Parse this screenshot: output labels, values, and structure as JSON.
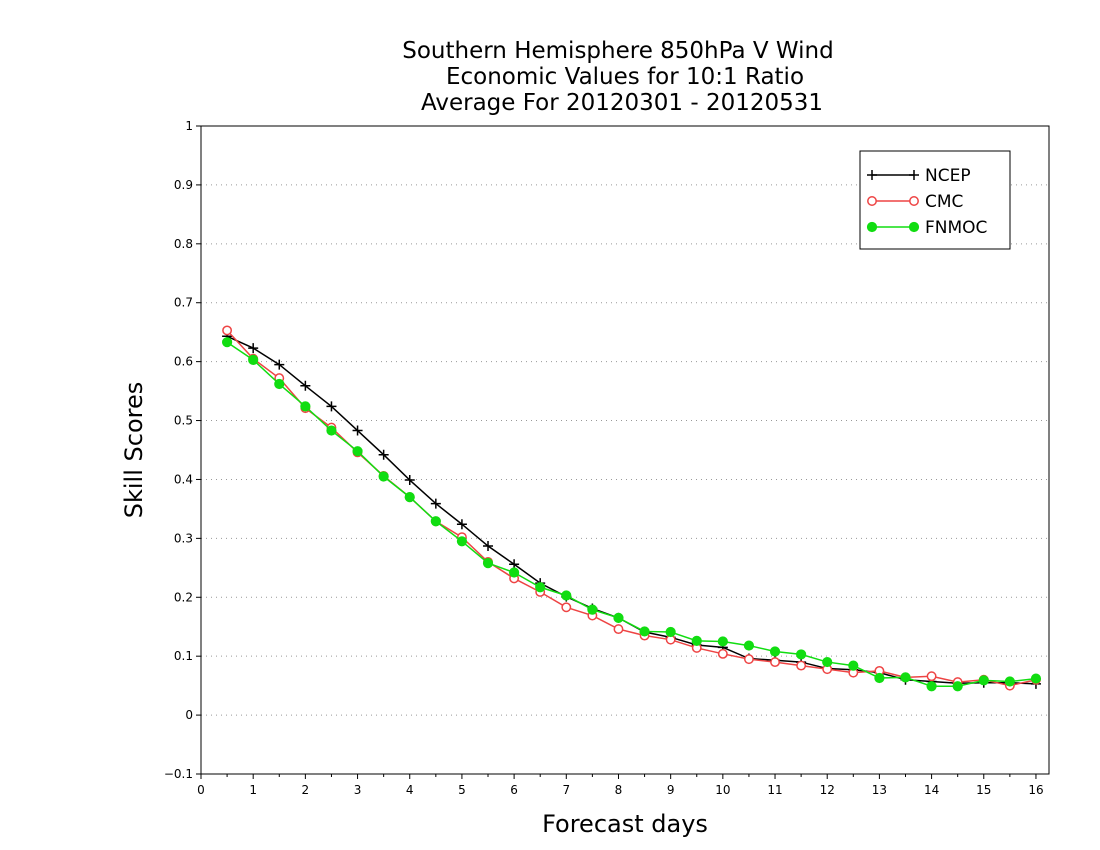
{
  "chart_data": {
    "type": "line",
    "title": [
      "Southern Hemisphere 850hPa V Wind",
      "Economic Values for 10:1 Ratio",
      "Average For 20120301 - 20120531"
    ],
    "xlabel": "Forecast days",
    "ylabel": "Skill Scores",
    "xlim": [
      0,
      16.25
    ],
    "ylim": [
      -0.1,
      1
    ],
    "xticks": [
      "0",
      "1",
      "2",
      "3",
      "4",
      "5",
      "6",
      "7",
      "8",
      "9",
      "10",
      "11",
      "12",
      "13",
      "14",
      "15",
      "16"
    ],
    "yticks": [
      "−0.1",
      "0",
      "0.1",
      "0.2",
      "0.3",
      "0.4",
      "0.5",
      "0.6",
      "0.7",
      "0.8",
      "0.9",
      "1"
    ],
    "ytick_values": [
      -0.1,
      0,
      0.1,
      0.2,
      0.3,
      0.4,
      0.5,
      0.6,
      0.7,
      0.8,
      0.9,
      1
    ],
    "grid": "horizontal dotted",
    "legend_position": "top-right",
    "x": [
      0.5,
      1,
      1.5,
      2,
      2.5,
      3,
      3.5,
      4,
      4.5,
      5,
      5.5,
      6,
      6.5,
      7,
      7.5,
      8,
      8.5,
      9,
      9.5,
      10,
      10.5,
      11,
      11.5,
      12,
      12.5,
      13,
      13.5,
      14,
      14.5,
      15,
      15.5,
      16
    ],
    "series": [
      {
        "name": "NCEP",
        "color": "#000000",
        "marker": "plus",
        "values": [
          0.643,
          0.623,
          0.595,
          0.559,
          0.524,
          0.483,
          0.442,
          0.399,
          0.359,
          0.324,
          0.287,
          0.256,
          0.224,
          0.201,
          0.181,
          0.165,
          0.141,
          0.132,
          0.119,
          0.115,
          0.096,
          0.093,
          0.09,
          0.079,
          0.077,
          0.072,
          0.06,
          0.057,
          0.054,
          0.055,
          0.055,
          0.053
        ]
      },
      {
        "name": "CMC",
        "color": "#ee4444",
        "marker": "open-circle",
        "values": [
          0.653,
          0.605,
          0.572,
          0.521,
          0.488,
          0.446,
          0.406,
          0.37,
          0.329,
          0.302,
          0.26,
          0.232,
          0.209,
          0.183,
          0.169,
          0.146,
          0.135,
          0.128,
          0.114,
          0.104,
          0.095,
          0.09,
          0.084,
          0.078,
          0.072,
          0.075,
          0.064,
          0.066,
          0.056,
          0.06,
          0.05,
          0.06
        ]
      },
      {
        "name": "FNMOC",
        "color": "#11dd11",
        "marker": "filled-circle",
        "values": [
          0.633,
          0.603,
          0.562,
          0.524,
          0.483,
          0.448,
          0.405,
          0.37,
          0.329,
          0.295,
          0.258,
          0.242,
          0.217,
          0.203,
          0.179,
          0.165,
          0.142,
          0.141,
          0.126,
          0.125,
          0.118,
          0.108,
          0.103,
          0.09,
          0.084,
          0.063,
          0.064,
          0.049,
          0.049,
          0.059,
          0.057,
          0.062
        ]
      }
    ]
  }
}
